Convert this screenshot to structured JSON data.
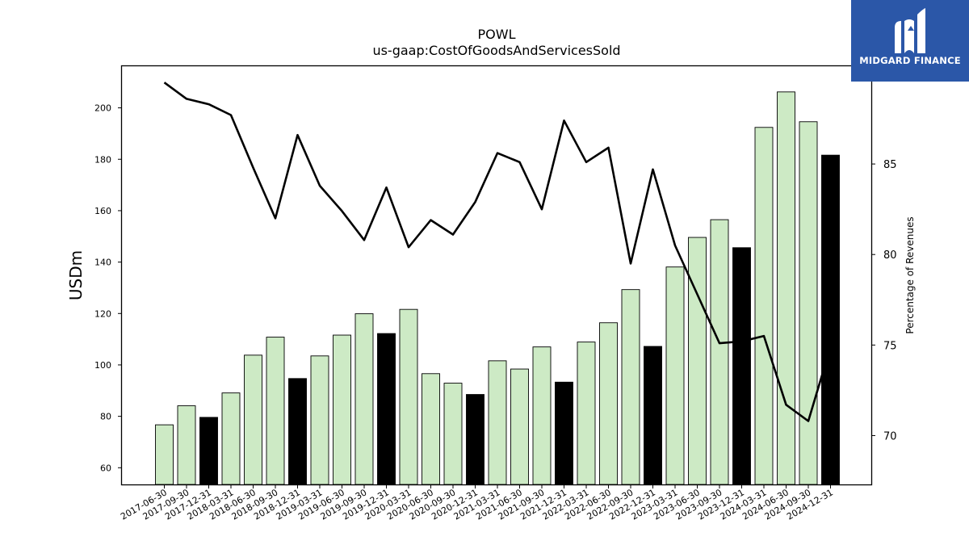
{
  "title": "POWL",
  "subtitle": "us-gaap:CostOfGoodsAndServicesSold",
  "logo": {
    "text": "MIDGARD FINANCE"
  },
  "chart_data": {
    "type": "bar",
    "categories": [
      "2017-06-30",
      "2017-09-30",
      "2017-12-31",
      "2018-03-31",
      "2018-06-30",
      "2018-09-30",
      "2018-12-31",
      "2019-03-31",
      "2019-06-30",
      "2019-09-30",
      "2019-12-31",
      "2020-03-31",
      "2020-06-30",
      "2020-09-30",
      "2020-12-31",
      "2021-03-31",
      "2021-06-30",
      "2021-09-30",
      "2021-12-31",
      "2022-03-31",
      "2022-06-30",
      "2022-09-30",
      "2022-12-31",
      "2023-03-31",
      "2023-06-30",
      "2023-09-30",
      "2023-12-31",
      "2024-03-31",
      "2024-06-30",
      "2024-09-30",
      "2024-12-31"
    ],
    "values": [
      76.7,
      84.1,
      79.6,
      89.1,
      103.8,
      110.8,
      94.7,
      103.5,
      111.6,
      119.9,
      112.2,
      121.6,
      96.6,
      92.9,
      88.5,
      101.6,
      98.4,
      107.0,
      93.3,
      108.9,
      116.4,
      129.3,
      107.2,
      138.1,
      149.6,
      156.5,
      145.6,
      192.4,
      206.2,
      194.6,
      181.6
    ],
    "bar_colors": [
      "#cdeac5",
      "#cdeac5",
      "#000000",
      "#cdeac5",
      "#cdeac5",
      "#cdeac5",
      "#000000",
      "#cdeac5",
      "#cdeac5",
      "#cdeac5",
      "#000000",
      "#cdeac5",
      "#cdeac5",
      "#cdeac5",
      "#000000",
      "#cdeac5",
      "#cdeac5",
      "#cdeac5",
      "#000000",
      "#cdeac5",
      "#cdeac5",
      "#cdeac5",
      "#000000",
      "#cdeac5",
      "#cdeac5",
      "#cdeac5",
      "#000000",
      "#cdeac5",
      "#cdeac5",
      "#cdeac5",
      "#000000"
    ],
    "ylabel": "USDm",
    "ylim": [
      53.5,
      216.2
    ],
    "yticks": [
      60,
      80,
      100,
      120,
      140,
      160,
      180,
      200
    ],
    "line_series": {
      "values": [
        89.5,
        88.6,
        88.3,
        87.7,
        84.8,
        82.0,
        86.6,
        83.8,
        82.4,
        80.8,
        83.7,
        80.4,
        81.9,
        81.1,
        82.9,
        85.6,
        85.1,
        82.5,
        87.4,
        85.1,
        85.9,
        79.5,
        84.7,
        80.5,
        77.8,
        75.1,
        75.2,
        75.5,
        71.7,
        70.8,
        74.9
      ],
      "color": "#000000",
      "ylabel": "Percentage of Revenues",
      "ylim": [
        67.3,
        90.4
      ],
      "yticks": [
        70,
        75,
        80,
        85
      ]
    },
    "grid": false
  }
}
